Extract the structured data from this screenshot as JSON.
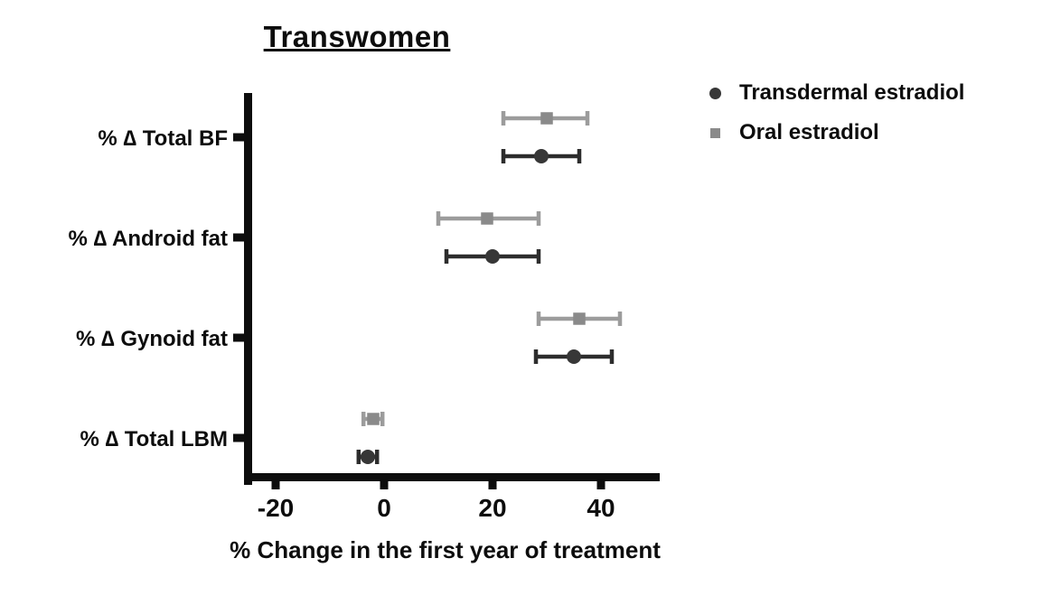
{
  "chart_data": {
    "type": "scatter",
    "subtype": "horizontal-dot-with-error-bars",
    "title": "Transwomen",
    "xlabel": "% Change in the first year of treatment",
    "ylabel": "",
    "categories": [
      "% ∆ Total BF",
      "% ∆ Android fat",
      "% ∆ Gynoid fat",
      "% ∆ Total LBM"
    ],
    "x_ticks": [
      -20,
      0,
      20,
      40
    ],
    "xlim": [
      -26,
      51
    ],
    "grid": false,
    "legend_position": "top-right",
    "axis_color": "#0d0d0d",
    "series": [
      {
        "name": "Transdermal estradiol",
        "marker": "circle",
        "color": "#373737",
        "line_color": "#2d2d2d",
        "points": [
          {
            "category": "% ∆ Total BF",
            "value": 29,
            "low": 22,
            "high": 36
          },
          {
            "category": "% ∆ Android fat",
            "value": 20,
            "low": 11.5,
            "high": 28.5
          },
          {
            "category": "% ∆ Gynoid fat",
            "value": 35,
            "low": 28,
            "high": 42
          },
          {
            "category": "% ∆ Total LBM",
            "value": -3,
            "low": -4.7,
            "high": -1.3
          }
        ]
      },
      {
        "name": "Oral estradiol",
        "marker": "square",
        "color": "#8a8a8a",
        "line_color": "#9c9c9c",
        "points": [
          {
            "category": "% ∆ Total BF",
            "value": 30,
            "low": 22,
            "high": 37.5
          },
          {
            "category": "% ∆ Android fat",
            "value": 19,
            "low": 10,
            "high": 28.5
          },
          {
            "category": "% ∆ Gynoid fat",
            "value": 36,
            "low": 28.5,
            "high": 43.5
          },
          {
            "category": "% ∆ Total LBM",
            "value": -2,
            "low": -3.8,
            "high": -0.3
          }
        ]
      }
    ]
  }
}
